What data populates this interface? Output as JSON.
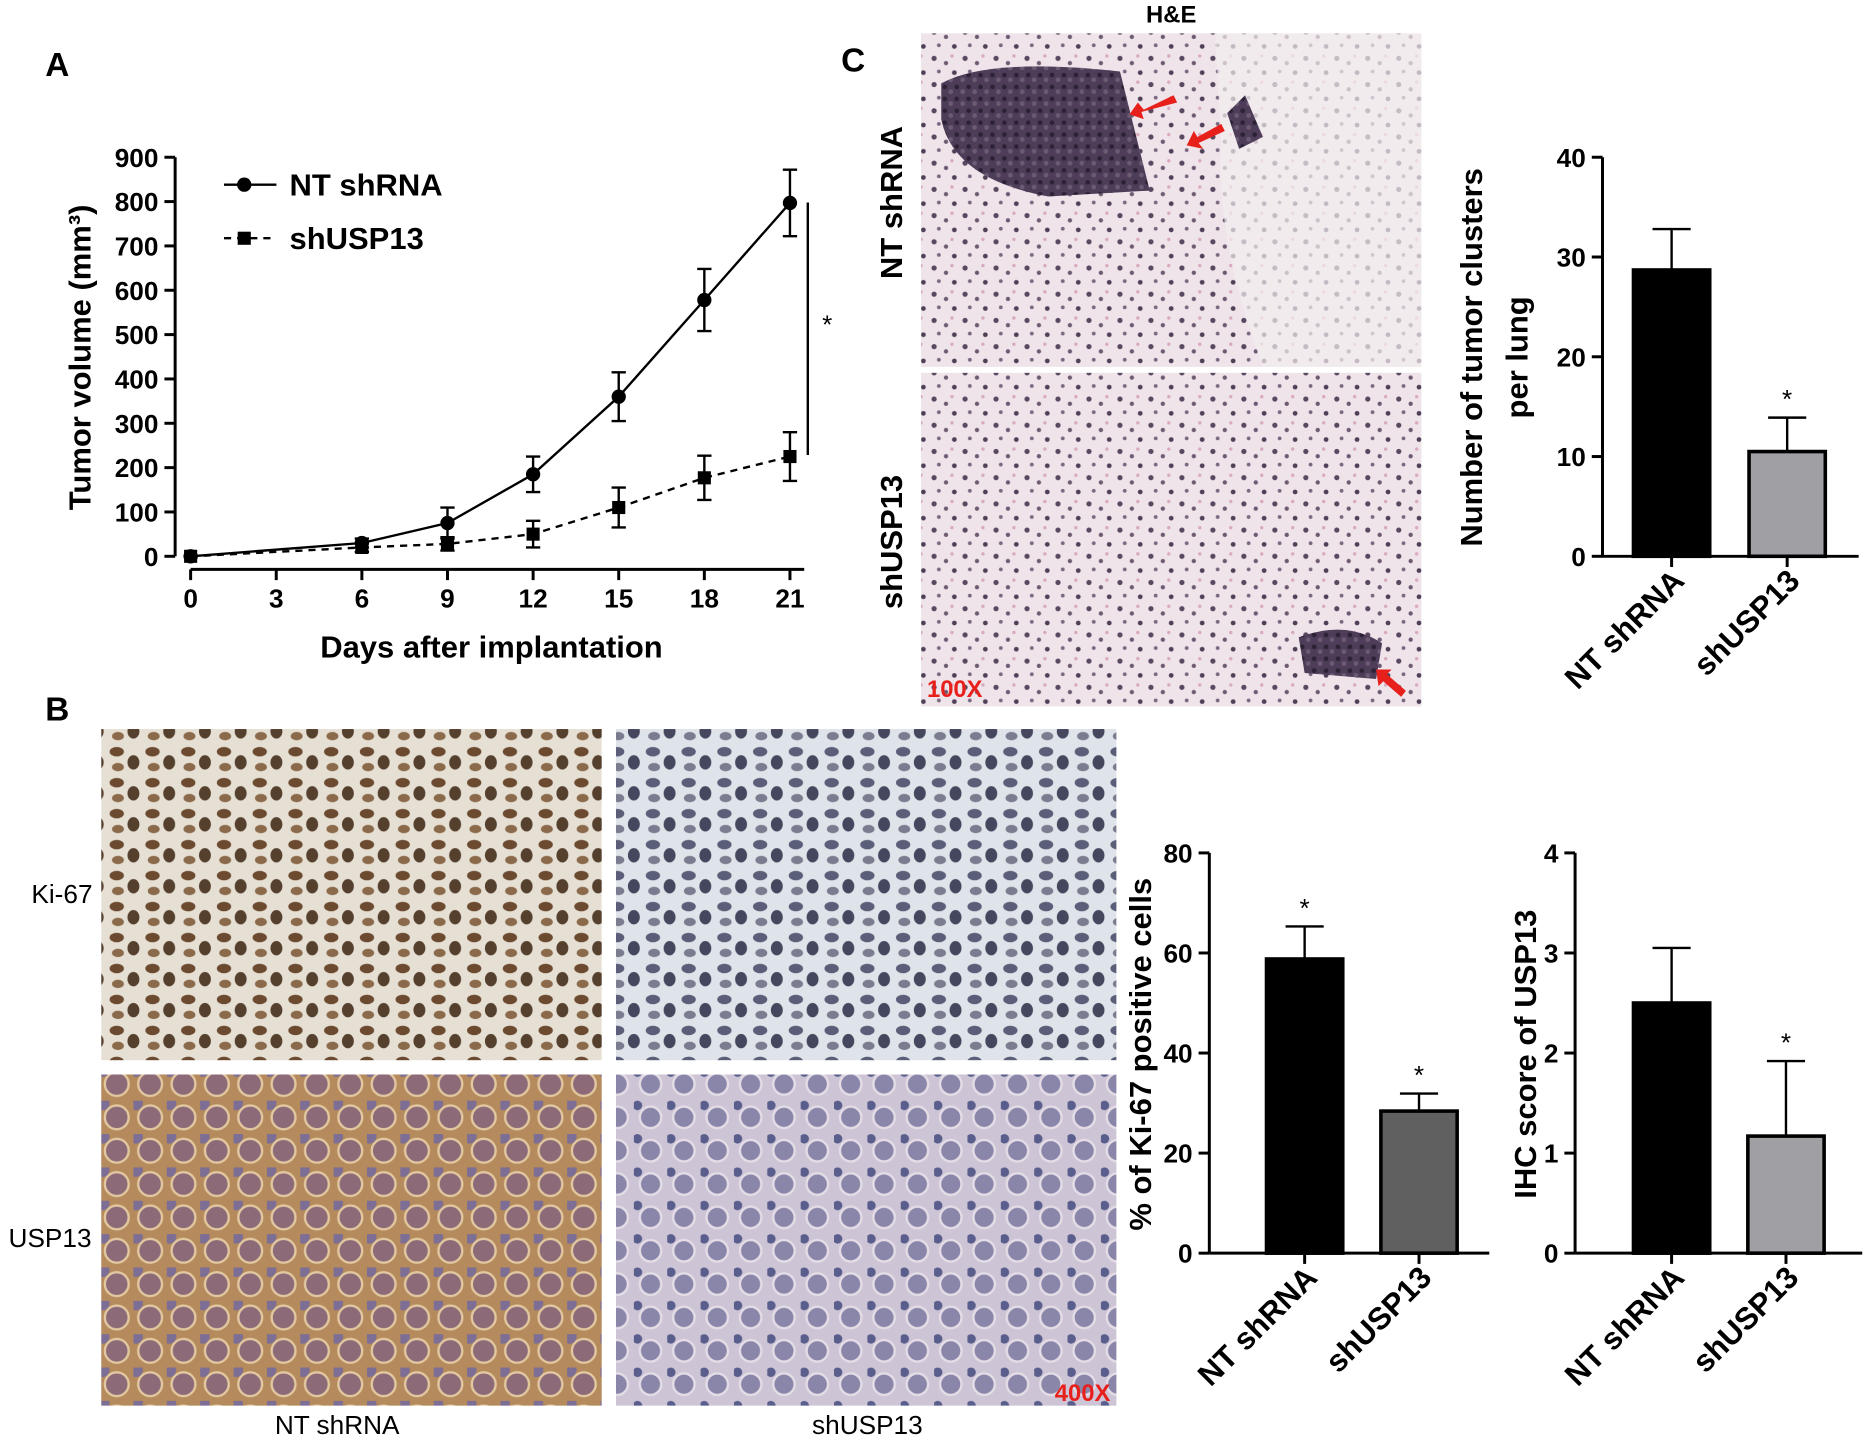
{
  "chart_data": [
    {
      "type": "line",
      "xlabel": "Days after implantation",
      "ylabel": "Tumor volume (mm³)",
      "x": [
        0,
        6,
        9,
        12,
        15,
        18,
        21
      ],
      "xlim": [
        0,
        21.5
      ],
      "xticks": [
        0,
        3,
        6,
        9,
        12,
        15,
        18,
        21
      ],
      "ylim": [
        0,
        900
      ],
      "yticks": [
        0,
        100,
        200,
        300,
        400,
        500,
        600,
        700,
        800,
        900
      ],
      "legend": "top-left",
      "annotation": "*",
      "series": [
        {
          "name": "NT shRNA",
          "color": "#000000",
          "marker": "circle",
          "dash": "solid",
          "values": [
            0,
            30,
            75,
            185,
            360,
            578,
            797
          ],
          "errors": [
            0,
            10,
            35,
            40,
            55,
            70,
            75
          ]
        },
        {
          "name": "shUSP13",
          "color": "#000000",
          "marker": "square",
          "dash": "dashed",
          "values": [
            0,
            20,
            28,
            50,
            110,
            177,
            225
          ],
          "errors": [
            0,
            10,
            15,
            30,
            45,
            50,
            55
          ]
        }
      ]
    },
    {
      "type": "bar",
      "ylabel": [
        "Number of tumor clusters",
        "per lung"
      ],
      "categories": [
        "NT shRNA",
        "shUSP13"
      ],
      "values": [
        28.7,
        10.5
      ],
      "errors": [
        4.1,
        3.4
      ],
      "colors": [
        "#000000",
        "#a0a0a4"
      ],
      "significance": [
        null,
        "*"
      ],
      "ylim": [
        0,
        40
      ],
      "yticks": [
        0,
        10,
        20,
        30,
        40
      ]
    },
    {
      "type": "bar",
      "ylabel": [
        "% of Ki-67 positive cells"
      ],
      "categories": [
        "NT shRNA",
        "shUSP13"
      ],
      "values": [
        58.8,
        28.4
      ],
      "errors": [
        6.5,
        3.5
      ],
      "colors": [
        "#000000",
        "#606060"
      ],
      "significance": [
        "*",
        "*"
      ],
      "ylim": [
        0,
        80
      ],
      "yticks": [
        0,
        20,
        40,
        60,
        80
      ]
    },
    {
      "type": "bar",
      "ylabel": [
        "IHC score of USP13"
      ],
      "categories": [
        "NT shRNA",
        "shUSP13"
      ],
      "values": [
        2.5,
        1.17
      ],
      "errors": [
        0.55,
        0.75
      ],
      "colors": [
        "#000000",
        "#a0a0a4"
      ],
      "significance": [
        null,
        "*"
      ],
      "ylim": [
        0,
        4
      ],
      "yticks": [
        0,
        1,
        2,
        3,
        4
      ]
    }
  ],
  "panel_labels": [
    "A",
    "B",
    "C"
  ],
  "he_panel": {
    "title": "H&E",
    "rows": [
      "NT shRNA",
      "shUSP13"
    ],
    "magnification": "100X"
  },
  "ihc_panel": {
    "rows": [
      "Ki-67",
      "USP13"
    ],
    "columns": [
      "NT shRNA",
      "shUSP13"
    ],
    "magnification": "400X"
  }
}
